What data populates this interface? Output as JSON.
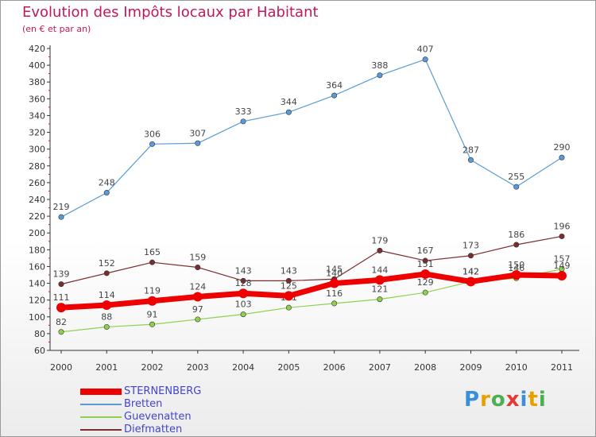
{
  "header": {
    "title": "Evolution des Impôts locaux par Habitant",
    "subtitle": "(en € et par an)"
  },
  "logo": {
    "letters": [
      "P",
      "r",
      "o",
      "x",
      "i",
      "t",
      "i"
    ],
    "colors": [
      "#3a8fd8",
      "#e6a100",
      "#4caf50",
      "#e53935",
      "#3a8fd8",
      "#e6a100",
      "#4caf50"
    ]
  },
  "chart_data": {
    "type": "line",
    "x": [
      "2000",
      "2001",
      "2002",
      "2003",
      "2004",
      "2005",
      "2006",
      "2007",
      "2008",
      "2009",
      "2010",
      "2011"
    ],
    "ylim": [
      60,
      420
    ],
    "yticks": [
      60,
      80,
      100,
      120,
      140,
      160,
      180,
      200,
      220,
      240,
      260,
      280,
      300,
      320,
      340,
      360,
      380,
      400,
      420
    ],
    "grid": false,
    "legend_position": "bottom-left",
    "series": [
      {
        "name": "Bretten",
        "color": "#5b9bd5",
        "width": 1.2,
        "marker": 3.2,
        "values": [
          219,
          248,
          306,
          307,
          333,
          344,
          364,
          388,
          407,
          287,
          255,
          290
        ],
        "labels": [
          "219",
          "248",
          "306",
          "307",
          "333",
          "344",
          "364",
          "388",
          "407",
          "287",
          "255",
          "290"
        ]
      },
      {
        "name": "Guevenatten",
        "color": "#8fd14f",
        "width": 1.2,
        "marker": 3.2,
        "values": [
          82,
          88,
          91,
          97,
          103,
          111,
          116,
          121,
          129,
          142,
          146,
          157
        ],
        "labels": [
          "82",
          "88",
          "91",
          "97",
          "103",
          "111",
          "116",
          "121",
          "129",
          "142",
          "146",
          "157"
        ]
      },
      {
        "name": "Diefmatten",
        "color": "#7b2d2d",
        "width": 1.2,
        "marker": 3.2,
        "values": [
          139,
          152,
          165,
          159,
          143,
          143,
          145,
          179,
          167,
          173,
          186,
          196
        ],
        "labels": [
          "139",
          "152",
          "165",
          "159",
          "143",
          "143",
          "145",
          "179",
          "167",
          "173",
          "186",
          "196"
        ]
      },
      {
        "name": "STERNENBERG",
        "color": "#ee0000",
        "width": 7,
        "marker": 6,
        "values": [
          111,
          114,
          119,
          124,
          128,
          125,
          140,
          144,
          151,
          142,
          150,
          149
        ],
        "labels": [
          "111",
          "114",
          "119",
          "124",
          "128",
          "125",
          "140",
          "144",
          "151",
          "142",
          "150",
          "149"
        ]
      }
    ],
    "legend": [
      {
        "name": "STERNENBERG",
        "color": "#ee0000",
        "width": 8
      },
      {
        "name": "Bretten",
        "color": "#5b9bd5",
        "width": 2
      },
      {
        "name": "Guevenatten",
        "color": "#8fd14f",
        "width": 2
      },
      {
        "name": "Diefmatten",
        "color": "#7b2d2d",
        "width": 2
      }
    ]
  }
}
